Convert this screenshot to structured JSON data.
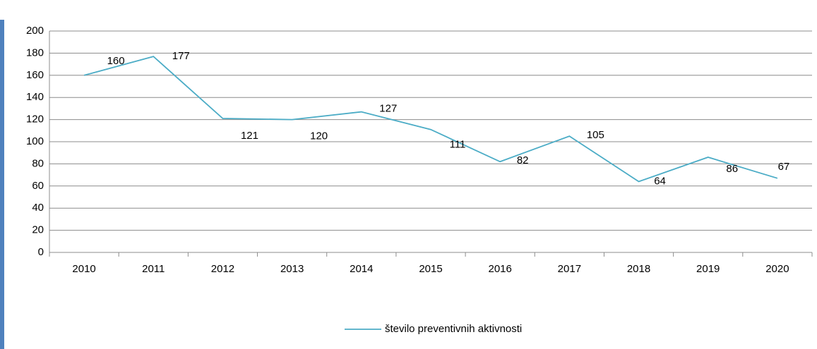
{
  "chart_data": {
    "type": "line",
    "categories": [
      "2010",
      "2011",
      "2012",
      "2013",
      "2014",
      "2015",
      "2016",
      "2017",
      "2018",
      "2019",
      "2020"
    ],
    "series": [
      {
        "name": "število preventivnih aktivnosti",
        "color": "#4bacc6",
        "values": [
          160,
          177,
          121,
          120,
          127,
          111,
          82,
          105,
          64,
          86,
          67
        ]
      }
    ],
    "ylim": [
      0,
      200
    ],
    "yticks": [
      0,
      20,
      40,
      60,
      80,
      100,
      120,
      140,
      160,
      180,
      200
    ],
    "grid": true,
    "legend": "bottom"
  }
}
